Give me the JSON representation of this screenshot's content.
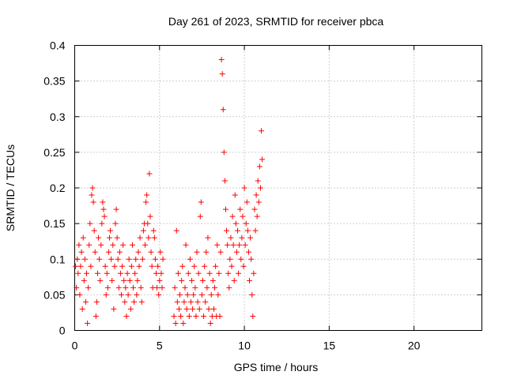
{
  "chart_data": {
    "type": "scatter",
    "title": "Day 261 of 2023, SRMTID for receiver pbca",
    "xlabel": "GPS time / hours",
    "ylabel": "SRMTID / TECUs",
    "xlim": [
      0,
      24
    ],
    "ylim": [
      0,
      0.4
    ],
    "x_ticks": [
      0,
      5,
      10,
      15,
      20
    ],
    "x_tick_labels": [
      "0",
      "5",
      "10",
      "15",
      "20"
    ],
    "y_ticks": [
      0,
      0.05,
      0.1,
      0.15,
      0.2,
      0.25,
      0.3,
      0.35,
      0.4
    ],
    "y_tick_labels": [
      "0",
      "0.05",
      "0.1",
      "0.15",
      "0.2",
      "0.25",
      "0.3",
      "0.35",
      "0.4"
    ],
    "grid": true,
    "marker": "plus",
    "color": "#ff0000",
    "series": [
      {
        "name": "SRMTID",
        "points": [
          [
            0.05,
            0.09
          ],
          [
            0.1,
            0.06
          ],
          [
            0.15,
            0.1
          ],
          [
            0.2,
            0.08
          ],
          [
            0.25,
            0.12
          ],
          [
            0.3,
            0.05
          ],
          [
            0.35,
            0.09
          ],
          [
            0.4,
            0.11
          ],
          [
            0.45,
            0.03
          ],
          [
            0.5,
            0.13
          ],
          [
            0.55,
            0.07
          ],
          [
            0.6,
            0.1
          ],
          [
            0.65,
            0.04
          ],
          [
            0.7,
            0.08
          ],
          [
            0.75,
            0.01
          ],
          [
            0.8,
            0.06
          ],
          [
            0.85,
            0.12
          ],
          [
            0.9,
            0.15
          ],
          [
            0.95,
            0.09
          ],
          [
            1.0,
            0.19
          ],
          [
            1.05,
            0.2
          ],
          [
            1.1,
            0.18
          ],
          [
            1.15,
            0.14
          ],
          [
            1.2,
            0.11
          ],
          [
            1.25,
            0.02
          ],
          [
            1.3,
            0.04
          ],
          [
            1.35,
            0.08
          ],
          [
            1.4,
            0.13
          ],
          [
            1.45,
            0.1
          ],
          [
            1.5,
            0.07
          ],
          [
            1.55,
            0.12
          ],
          [
            1.6,
            0.15
          ],
          [
            1.65,
            0.18
          ],
          [
            1.7,
            0.17
          ],
          [
            1.75,
            0.16
          ],
          [
            1.8,
            0.09
          ],
          [
            1.85,
            0.05
          ],
          [
            1.9,
            0.08
          ],
          [
            1.95,
            0.06
          ],
          [
            2.0,
            0.11
          ],
          [
            2.05,
            0.13
          ],
          [
            2.1,
            0.14
          ],
          [
            2.15,
            0.1
          ],
          [
            2.2,
            0.07
          ],
          [
            2.25,
            0.12
          ],
          [
            2.3,
            0.03
          ],
          [
            2.35,
            0.09
          ],
          [
            2.4,
            0.15
          ],
          [
            2.45,
            0.17
          ],
          [
            2.5,
            0.13
          ],
          [
            2.55,
            0.1
          ],
          [
            2.6,
            0.06
          ],
          [
            2.65,
            0.11
          ],
          [
            2.7,
            0.08
          ],
          [
            2.75,
            0.05
          ],
          [
            2.8,
            0.09
          ],
          [
            2.85,
            0.12
          ],
          [
            2.9,
            0.07
          ],
          [
            2.95,
            0.04
          ],
          [
            3.0,
            0.06
          ],
          [
            3.05,
            0.02
          ],
          [
            3.1,
            0.08
          ],
          [
            3.15,
            0.05
          ],
          [
            3.2,
            0.1
          ],
          [
            3.25,
            0.07
          ],
          [
            3.3,
            0.03
          ],
          [
            3.35,
            0.09
          ],
          [
            3.4,
            0.12
          ],
          [
            3.45,
            0.06
          ],
          [
            3.5,
            0.04
          ],
          [
            3.55,
            0.08
          ],
          [
            3.6,
            0.1
          ],
          [
            3.65,
            0.05
          ],
          [
            3.7,
            0.07
          ],
          [
            3.75,
            0.11
          ],
          [
            3.8,
            0.09
          ],
          [
            3.85,
            0.13
          ],
          [
            3.9,
            0.06
          ],
          [
            3.95,
            0.04
          ],
          [
            4.0,
            0.1
          ],
          [
            4.05,
            0.14
          ],
          [
            4.1,
            0.15
          ],
          [
            4.15,
            0.12
          ],
          [
            4.2,
            0.18
          ],
          [
            4.25,
            0.19
          ],
          [
            4.3,
            0.15
          ],
          [
            4.35,
            0.13
          ],
          [
            4.4,
            0.22
          ],
          [
            4.45,
            0.16
          ],
          [
            4.5,
            0.11
          ],
          [
            4.55,
            0.09
          ],
          [
            4.6,
            0.06
          ],
          [
            4.65,
            0.14
          ],
          [
            4.7,
            0.13
          ],
          [
            4.75,
            0.1
          ],
          [
            4.8,
            0.08
          ],
          [
            4.85,
            0.06
          ],
          [
            4.9,
            0.09
          ],
          [
            4.95,
            0.05
          ],
          [
            5.0,
            0.07
          ],
          [
            5.05,
            0.11
          ],
          [
            5.1,
            0.08
          ],
          [
            5.15,
            0.06
          ],
          [
            5.2,
            0.1
          ],
          [
            5.85,
            0.02
          ],
          [
            5.9,
            0.06
          ],
          [
            5.95,
            0.01
          ],
          [
            6.0,
            0.14
          ],
          [
            6.05,
            0.04
          ],
          [
            6.1,
            0.08
          ],
          [
            6.15,
            0.03
          ],
          [
            6.2,
            0.05
          ],
          [
            6.25,
            0.02
          ],
          [
            6.3,
            0.07
          ],
          [
            6.35,
            0.09
          ],
          [
            6.4,
            0.01
          ],
          [
            6.45,
            0.04
          ],
          [
            6.5,
            0.06
          ],
          [
            6.55,
            0.12
          ],
          [
            6.6,
            0.03
          ],
          [
            6.65,
            0.05
          ],
          [
            6.7,
            0.08
          ],
          [
            6.75,
            0.02
          ],
          [
            6.8,
            0.1
          ],
          [
            6.85,
            0.04
          ],
          [
            6.9,
            0.07
          ],
          [
            6.95,
            0.03
          ],
          [
            7.0,
            0.05
          ],
          [
            7.05,
            0.09
          ],
          [
            7.1,
            0.06
          ],
          [
            7.15,
            0.02
          ],
          [
            7.2,
            0.11
          ],
          [
            7.25,
            0.04
          ],
          [
            7.3,
            0.08
          ],
          [
            7.35,
            0.03
          ],
          [
            7.4,
            0.16
          ],
          [
            7.45,
            0.18
          ],
          [
            7.5,
            0.05
          ],
          [
            7.55,
            0.07
          ],
          [
            7.6,
            0.02
          ],
          [
            7.65,
            0.09
          ],
          [
            7.7,
            0.04
          ],
          [
            7.75,
            0.11
          ],
          [
            7.8,
            0.06
          ],
          [
            7.85,
            0.13
          ],
          [
            7.9,
            0.03
          ],
          [
            7.95,
            0.08
          ],
          [
            8.0,
            0.01
          ],
          [
            8.05,
            0.05
          ],
          [
            8.1,
            0.02
          ],
          [
            8.15,
            0.07
          ],
          [
            8.2,
            0.03
          ],
          [
            8.25,
            0.06
          ],
          [
            8.3,
            0.09
          ],
          [
            8.35,
            0.02
          ],
          [
            8.4,
            0.12
          ],
          [
            8.45,
            0.05
          ],
          [
            8.5,
            0.08
          ],
          [
            8.55,
            0.02
          ],
          [
            8.6,
            0.11
          ],
          [
            8.65,
            0.38
          ],
          [
            8.7,
            0.36
          ],
          [
            8.75,
            0.31
          ],
          [
            8.8,
            0.25
          ],
          [
            8.85,
            0.21
          ],
          [
            8.9,
            0.17
          ],
          [
            8.95,
            0.14
          ],
          [
            9.0,
            0.12
          ],
          [
            9.05,
            0.08
          ],
          [
            9.1,
            0.06
          ],
          [
            9.15,
            0.1
          ],
          [
            9.2,
            0.13
          ],
          [
            9.25,
            0.09
          ],
          [
            9.3,
            0.16
          ],
          [
            9.35,
            0.12
          ],
          [
            9.4,
            0.07
          ],
          [
            9.45,
            0.19
          ],
          [
            9.5,
            0.15
          ],
          [
            9.55,
            0.11
          ],
          [
            9.6,
            0.14
          ],
          [
            9.65,
            0.08
          ],
          [
            9.7,
            0.12
          ],
          [
            9.75,
            0.17
          ],
          [
            9.8,
            0.1
          ],
          [
            9.85,
            0.13
          ],
          [
            9.9,
            0.16
          ],
          [
            9.95,
            0.09
          ],
          [
            10.0,
            0.2
          ],
          [
            10.05,
            0.12
          ],
          [
            10.1,
            0.15
          ],
          [
            10.15,
            0.18
          ],
          [
            10.2,
            0.14
          ],
          [
            10.25,
            0.11
          ],
          [
            10.3,
            0.07
          ],
          [
            10.35,
            0.13
          ],
          [
            10.4,
            0.1
          ],
          [
            10.45,
            0.05
          ],
          [
            10.5,
            0.02
          ],
          [
            10.55,
            0.08
          ],
          [
            10.6,
            0.17
          ],
          [
            10.65,
            0.14
          ],
          [
            10.7,
            0.19
          ],
          [
            10.75,
            0.16
          ],
          [
            10.8,
            0.21
          ],
          [
            10.85,
            0.18
          ],
          [
            10.9,
            0.23
          ],
          [
            10.95,
            0.2
          ],
          [
            11.0,
            0.28
          ],
          [
            11.05,
            0.24
          ]
        ]
      }
    ]
  }
}
